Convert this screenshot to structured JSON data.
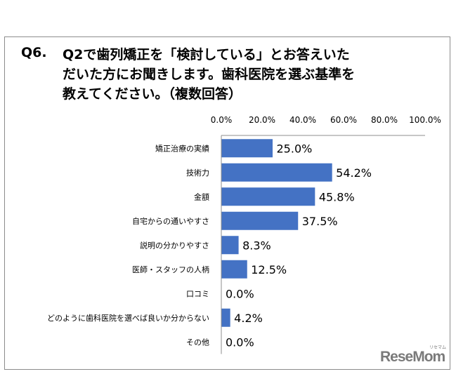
{
  "question": {
    "number": "Q6.",
    "lines": [
      "Q2で歯列矯正を「検討している」とお答えいた",
      "だいた方にお聞きします。歯科医院を選ぶ基準を",
      "教えてください。（複数回答）"
    ]
  },
  "chart_data": {
    "type": "bar",
    "orientation": "horizontal",
    "categories": [
      "矯正治療の実績",
      "技術力",
      "金額",
      "自宅からの通いやすさ",
      "説明の分かりやすさ",
      "医師・スタッフの人柄",
      "口コミ",
      "どのように歯科医院を選べば良いか分からない",
      "その他"
    ],
    "values": [
      25.0,
      54.2,
      45.8,
      37.5,
      8.3,
      12.5,
      0.0,
      4.2,
      0.0
    ],
    "value_labels": [
      "25.0%",
      "54.2%",
      "45.8%",
      "37.5%",
      "8.3%",
      "12.5%",
      "0.0%",
      "4.2%",
      "0.0%"
    ],
    "x_ticks": [
      "0.0%",
      "20.0%",
      "40.0%",
      "60.0%",
      "80.0%",
      "100.0%"
    ],
    "xlim": [
      0,
      100
    ],
    "axis_position": "top",
    "grid": false,
    "legend": false,
    "bar_color": "#4472c4"
  },
  "logo": {
    "text": "ReseMom",
    "ruby": "リセマム"
  }
}
